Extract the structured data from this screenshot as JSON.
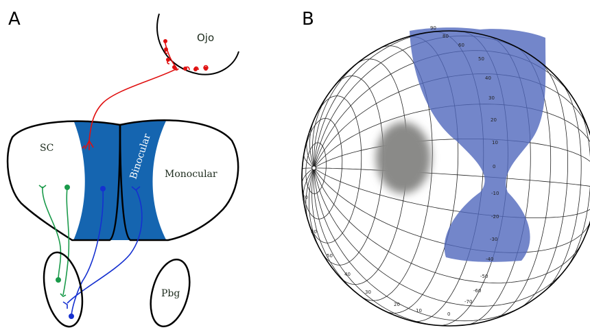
{
  "panel_a": {
    "label": "A",
    "eye": "Ojo",
    "sc": "SC",
    "binocular": "Binocular",
    "monocular": "Monocular",
    "pbg": "Pbg"
  },
  "panel_b": {
    "label": "B",
    "azimuth_labels": [
      "70",
      "60",
      "50",
      "40",
      "30",
      "20",
      "10",
      "0"
    ],
    "elevation_labels": [
      "90",
      "80",
      "60",
      "50",
      "40",
      "30",
      "20",
      "10",
      "0",
      "-10",
      "-20",
      "-30",
      "-40",
      "-50",
      "-60",
      "-70"
    ]
  }
}
